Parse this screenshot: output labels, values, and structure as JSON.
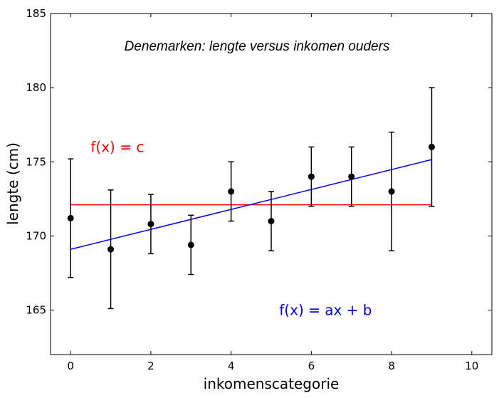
{
  "chart_data": {
    "type": "scatter",
    "title": "Denemarken: lengte versus inkomen ouders",
    "xlabel": "inkomenscategorie",
    "ylabel": "lengte (cm)",
    "xlim": [
      -0.5,
      10.5
    ],
    "ylim": [
      162,
      185
    ],
    "xticks": [
      0,
      2,
      4,
      6,
      8,
      10
    ],
    "yticks": [
      165,
      170,
      175,
      180,
      185
    ],
    "grid": false,
    "legend": "none",
    "series": [
      {
        "type": "errorbar-points",
        "color": "#000000",
        "x": [
          0,
          1,
          2,
          3,
          4,
          5,
          6,
          7,
          8,
          9
        ],
        "y": [
          171.2,
          169.1,
          170.8,
          169.4,
          173.0,
          171.0,
          174.0,
          174.0,
          173.0,
          176.0
        ],
        "yerr_low": [
          167.2,
          165.1,
          168.8,
          167.4,
          171.0,
          169.0,
          172.0,
          172.0,
          169.0,
          172.0
        ],
        "yerr_high": [
          175.2,
          173.1,
          172.8,
          171.4,
          175.0,
          173.0,
          176.0,
          176.0,
          177.0,
          180.0
        ]
      },
      {
        "type": "line",
        "color": "#ff0000",
        "x": [
          0,
          9
        ],
        "y": [
          172.1,
          172.1
        ]
      },
      {
        "type": "line",
        "color": "#0000ff",
        "x": [
          0,
          9
        ],
        "y": [
          169.1,
          175.15
        ]
      }
    ],
    "annotations": [
      {
        "text": "f(x) = c",
        "color": "#ff0000",
        "x": 0.5,
        "y": 176.0
      },
      {
        "text": "f(x) = ax + b",
        "color": "#0000ff",
        "x": 5.2,
        "y": 165.0
      }
    ]
  }
}
